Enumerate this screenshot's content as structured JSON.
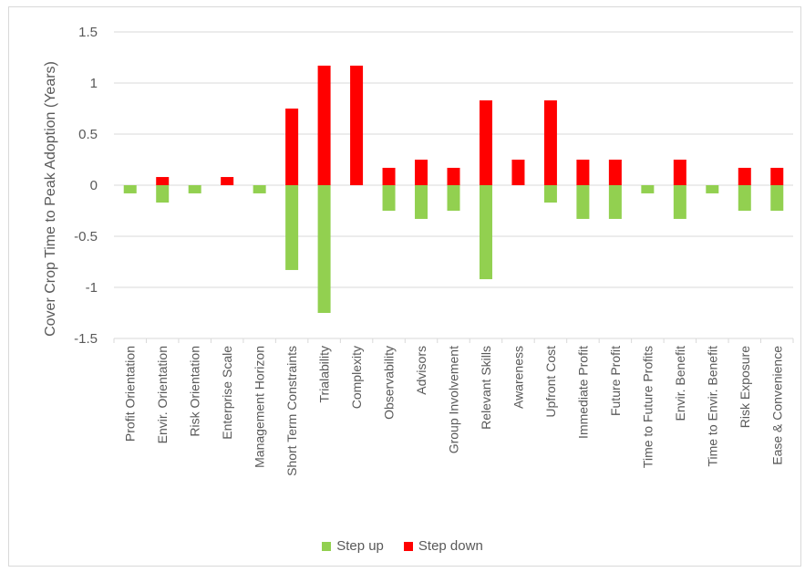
{
  "chart_data": {
    "type": "bar",
    "ylabel": "Cover Crop Time to Peak Adoption (Years)",
    "ylim": [
      -1.5,
      1.5
    ],
    "yticks": [
      1.5,
      1,
      0.5,
      0,
      -0.5,
      -1,
      -1.5
    ],
    "ytick_labels": [
      "1.5",
      "1",
      "0.5",
      "0",
      "-0.5",
      "-1",
      "-1.5"
    ],
    "grid": true,
    "legend_position": "bottom",
    "categories": [
      "Profit Orientation",
      "Envir. Orientation",
      "Risk Orientation",
      "Enterprise Scale",
      "Management Horizon",
      "Short Term Constraints",
      "Trialability",
      "Complexity",
      "Observability",
      "Advisors",
      "Group Involvement",
      "Relevant Skills",
      "Awareness",
      "Upfront Cost",
      "Immediate Profit",
      "Future Profit",
      "Time to Future Profits",
      "Envir. Benefit",
      "Time to Envir. Benefit",
      "Risk Exposure",
      "Ease & Convenience"
    ],
    "series": [
      {
        "name": "Step up",
        "color": "#92d050",
        "values": [
          -0.08,
          -0.17,
          -0.08,
          0,
          -0.08,
          -0.83,
          -1.25,
          0,
          -0.25,
          -0.33,
          -0.25,
          -0.92,
          0,
          -0.17,
          -0.33,
          -0.33,
          -0.08,
          -0.33,
          -0.08,
          -0.25,
          -0.25
        ]
      },
      {
        "name": "Step down",
        "color": "#ff0000",
        "values": [
          0,
          0.08,
          0,
          0.08,
          0,
          0.75,
          1.17,
          1.17,
          0.17,
          0.25,
          0.17,
          0.83,
          0.25,
          0.83,
          0.25,
          0.25,
          0,
          0.25,
          0,
          0.17,
          0.17
        ]
      }
    ]
  }
}
